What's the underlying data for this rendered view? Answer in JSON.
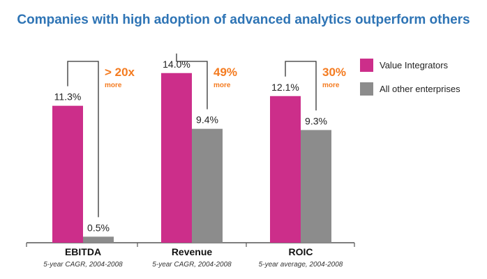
{
  "colors": {
    "title": "#2E74B5",
    "series_1": "#CC2E8A",
    "series_2": "#8C8C8C",
    "annotation": "#F47B20",
    "bracket": "#333333",
    "axis": "#555555"
  },
  "chart_data": {
    "type": "bar",
    "title": "Companies with high adoption of advanced analytics outperform others",
    "categories": [
      "EBITDA",
      "Revenue",
      "ROIC"
    ],
    "category_subtitles": [
      "5-year CAGR, 2004-2008",
      "5-year CAGR, 2004-2008",
      "5-year average, 2004-2008"
    ],
    "series": [
      {
        "name": "Value Integrators",
        "values": [
          11.3,
          14.0,
          12.1
        ]
      },
      {
        "name": "All other enterprises",
        "values": [
          0.5,
          9.4,
          9.3
        ]
      }
    ],
    "value_labels": [
      [
        "11.3%",
        "14.0%",
        "12.1%"
      ],
      [
        "0.5%",
        "9.4%",
        "9.3%"
      ]
    ],
    "annotations": [
      {
        "value": "> 20x",
        "suffix": "more"
      },
      {
        "value": "49%",
        "suffix": "more"
      },
      {
        "value": "30%",
        "suffix": "more"
      }
    ],
    "ylim": [
      0,
      16
    ],
    "grid": false,
    "legend_position": "right"
  }
}
